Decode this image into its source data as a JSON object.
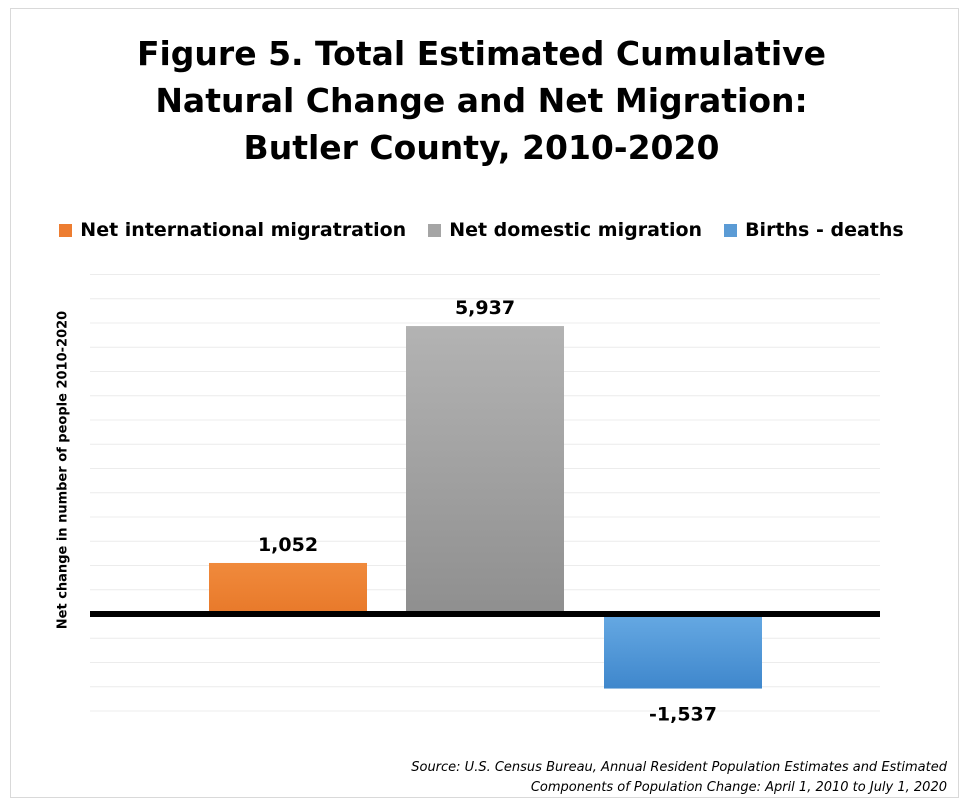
{
  "chart_data": {
    "type": "bar",
    "title_lines": [
      "Figure 5. Total Estimated Cumulative",
      "Natural Change and Net Migration:",
      "Butler County, 2010-2020"
    ],
    "ylabel": "Net change in number of people 2010-2020",
    "xlabel": "",
    "categories": [
      "Net international migratration",
      "Net domestic migration",
      "Births  - deaths"
    ],
    "values": [
      1052,
      5937,
      -1537
    ],
    "data_labels": [
      "1,052",
      "5,937",
      "-1,537"
    ],
    "colors": [
      "#ed7d31",
      "#a5a5a5",
      "#5b9bd5"
    ],
    "legend": [
      "Net international migratration",
      "Net domestic migration",
      "Births  - deaths"
    ],
    "legend_position": "top",
    "ylim": [
      -2000,
      7000
    ],
    "grid": true
  },
  "source": {
    "line1": "Source: U.S. Census Bureau, Annual Resident Population Estimates and Estimated",
    "line2": "Components of Population Change: April 1, 2010 to July 1, 2020"
  }
}
